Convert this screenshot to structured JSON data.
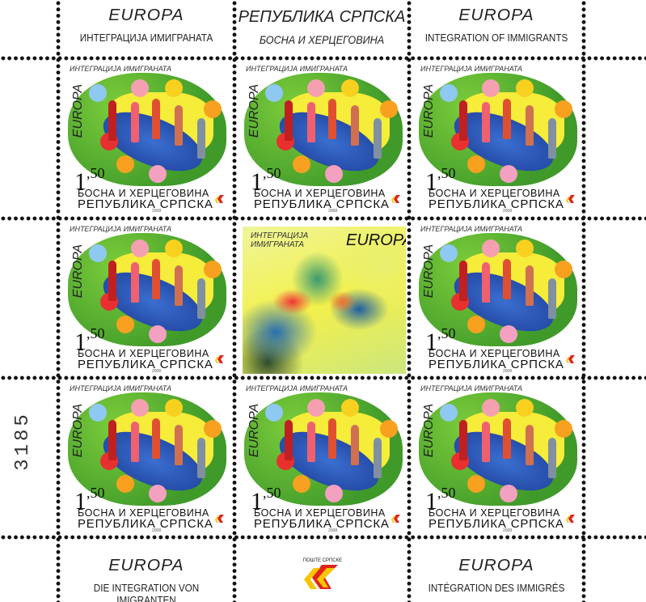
{
  "top_margin": {
    "left": {
      "brand": "EUROPA",
      "subtitle": "ИНТЕГРАЦИЈА ИМИГРАНАТА"
    },
    "center": {
      "title": "РЕПУБЛИКА СРПСКА",
      "subtitle": "БОСНА И ХЕРЦЕГОВИНА"
    },
    "right": {
      "brand": "EUROPA",
      "subtitle": "INTEGRATION OF IMMIGRANTS"
    }
  },
  "bottom_margin": {
    "left": {
      "brand": "EUROPA",
      "subtitle": "DIE INTEGRATION VON IMIGRANTEN"
    },
    "center": {
      "logo_text": "ПОШТЕ СРПСКЕ"
    },
    "right": {
      "brand": "EUROPA",
      "subtitle": "INTÉGRATION DES IMMIGRÉS"
    }
  },
  "serial_number": "3185",
  "stamp": {
    "caption": "ИНТЕГРАЦИЈА ИМИГРАНАТА",
    "brand": "EUROPA",
    "value_main": "1",
    "value_fraction": ",50",
    "country_line1": "БОСНА И ХЕРЦЕГОВИНА",
    "country_line2": "РЕПУБЛИКА СРПСКА",
    "year": "2008"
  },
  "center_label": {
    "caption_line1": "ИНТЕГРАЦИЈА",
    "caption_line2": "ИМИГРАНАТА",
    "brand": "EUROPA"
  },
  "stamp_count": 8,
  "colors": {
    "leaf": "#4fae2e",
    "sun": "#f6ec3a",
    "globe": "#2a55b8",
    "post_red": "#e2231a",
    "post_yellow": "#f7c600"
  }
}
